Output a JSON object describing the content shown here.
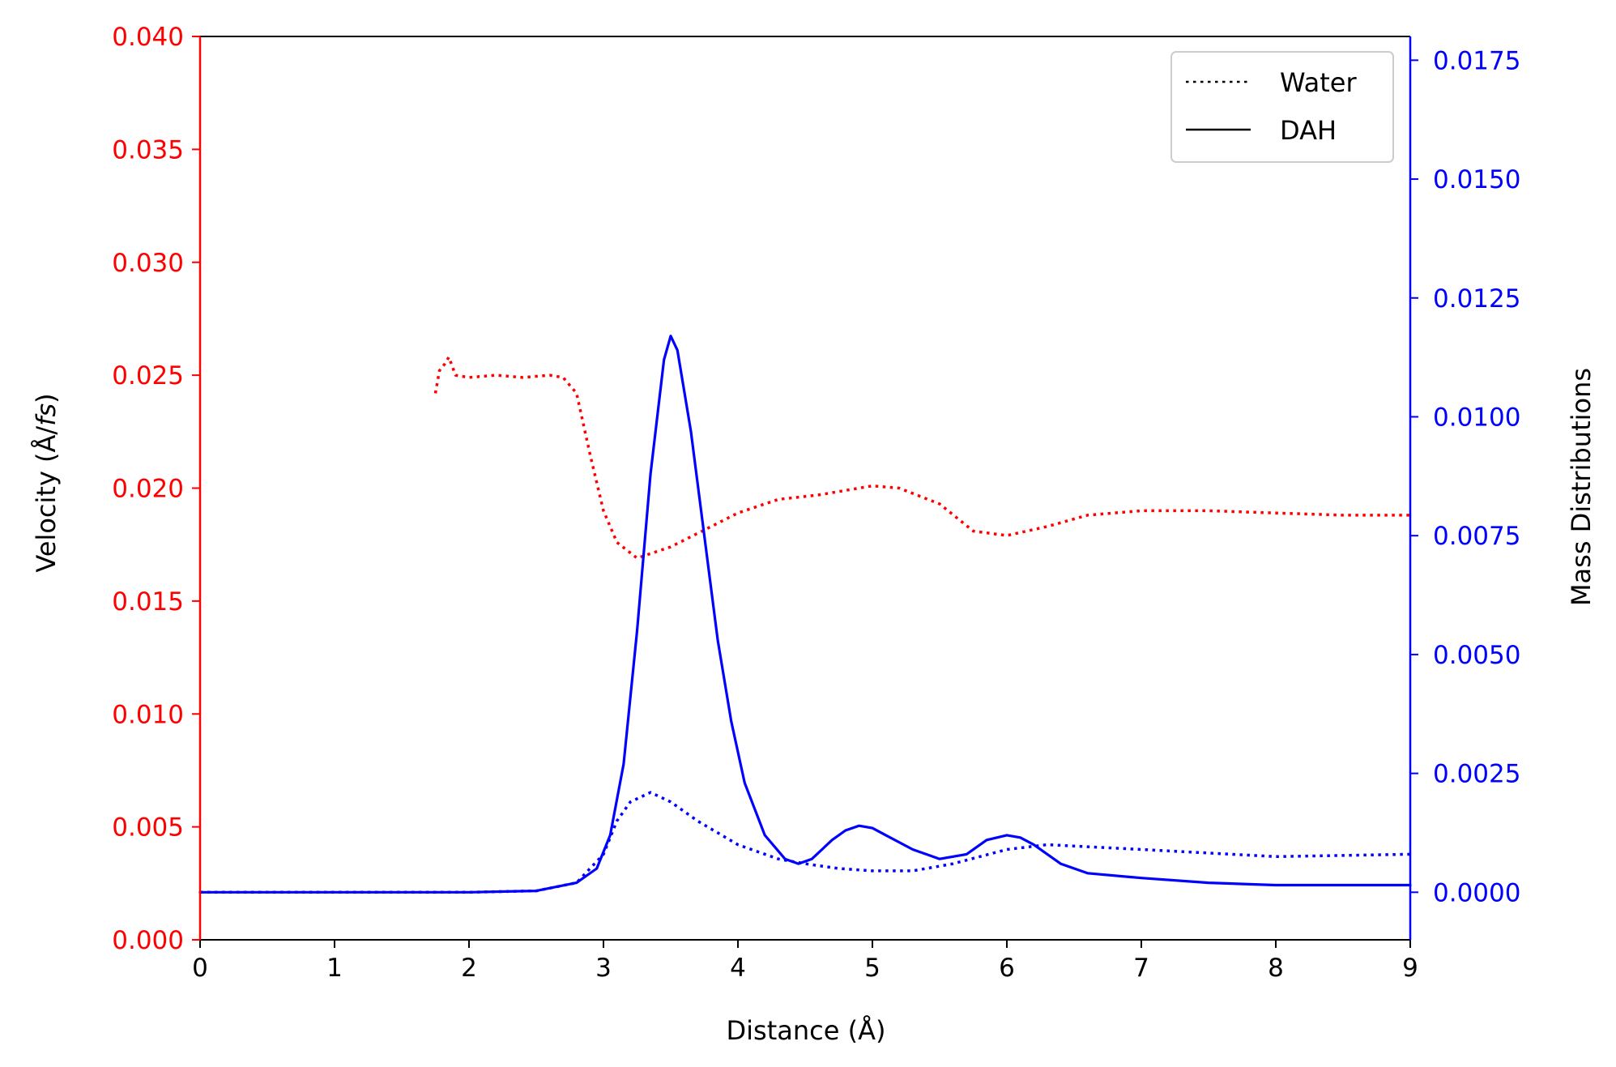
{
  "chart_data": {
    "type": "line",
    "xlabel": "Distance (Å)",
    "ylabel_left": "Velocity (Å/",
    "ylabel_left_italic": "fs",
    "ylabel_left_suffix": ")",
    "ylabel_right": "Mass Distributions",
    "xlim": [
      0,
      9
    ],
    "ylim_left": [
      0,
      0.04
    ],
    "ylim_right": [
      -0.001,
      0.018
    ],
    "xticks": [
      "0",
      "1",
      "2",
      "3",
      "4",
      "5",
      "6",
      "7",
      "8",
      "9"
    ],
    "yticks_left": [
      "0.000",
      "0.005",
      "0.010",
      "0.015",
      "0.020",
      "0.025",
      "0.030",
      "0.035",
      "0.040"
    ],
    "yticks_right": [
      "0.0000",
      "0.0025",
      "0.0050",
      "0.0075",
      "0.0100",
      "0.0125",
      "0.0150",
      "0.0175"
    ],
    "grid": false,
    "legend": {
      "placement": "top-right",
      "entries": [
        {
          "label": "Water",
          "style": "dotted"
        },
        {
          "label": "DAH",
          "style": "solid"
        }
      ]
    },
    "colors": {
      "velocity": "#ff0000",
      "mass": "#0000ff",
      "axes": "#000000"
    },
    "series": [
      {
        "quantity": "velocity",
        "group": "Water",
        "axis": "left",
        "style": "dotted",
        "x": [
          1.75,
          1.78,
          1.82,
          1.85,
          1.9,
          2.0,
          2.2,
          2.4,
          2.6,
          2.7,
          2.8,
          2.9,
          3.0,
          3.1,
          3.25,
          3.5,
          3.7,
          4.0,
          4.3,
          4.6,
          4.8,
          5.0,
          5.2,
          5.5,
          5.75,
          6.0,
          6.3,
          6.6,
          7.0,
          7.5,
          8.0,
          8.5,
          9.0
        ],
        "y": [
          0.0242,
          0.0252,
          0.0255,
          0.0258,
          0.025,
          0.0249,
          0.025,
          0.0249,
          0.025,
          0.0249,
          0.0242,
          0.0215,
          0.019,
          0.0176,
          0.0169,
          0.0174,
          0.018,
          0.0189,
          0.0195,
          0.0197,
          0.0199,
          0.0201,
          0.02,
          0.0193,
          0.0181,
          0.0179,
          0.0183,
          0.0188,
          0.019,
          0.019,
          0.0189,
          0.0188,
          0.0188
        ]
      },
      {
        "quantity": "velocity",
        "group": "DAH",
        "axis": "left",
        "style": "solid",
        "x": [],
        "y": []
      },
      {
        "quantity": "mass",
        "group": "Water",
        "axis": "right",
        "style": "dotted",
        "x": [
          0,
          1,
          2,
          2.5,
          2.8,
          3.0,
          3.1,
          3.2,
          3.35,
          3.5,
          3.7,
          4.0,
          4.3,
          4.5,
          4.75,
          5.0,
          5.3,
          5.6,
          6.0,
          6.3,
          7.0,
          8.0,
          9.0
        ],
        "y": [
          0.0,
          0.0,
          0.0,
          3e-05,
          0.0002,
          0.0008,
          0.0015,
          0.0019,
          0.0021,
          0.0019,
          0.0015,
          0.001,
          0.0007,
          0.0006,
          0.0005,
          0.00045,
          0.00045,
          0.0006,
          0.0009,
          0.001,
          0.0009,
          0.00075,
          0.0008
        ]
      },
      {
        "quantity": "mass",
        "group": "DAH",
        "axis": "right",
        "style": "solid",
        "x": [
          0,
          1,
          2,
          2.5,
          2.8,
          2.95,
          3.05,
          3.15,
          3.25,
          3.35,
          3.45,
          3.5,
          3.55,
          3.65,
          3.75,
          3.85,
          3.95,
          4.05,
          4.2,
          4.35,
          4.45,
          4.55,
          4.7,
          4.8,
          4.9,
          5.0,
          5.1,
          5.3,
          5.5,
          5.7,
          5.85,
          6.0,
          6.1,
          6.2,
          6.4,
          6.6,
          7.0,
          7.5,
          8.0,
          8.5,
          9.0
        ],
        "y": [
          0.0,
          0.0,
          0.0,
          3e-05,
          0.0002,
          0.0005,
          0.0012,
          0.0027,
          0.0055,
          0.0088,
          0.0112,
          0.0117,
          0.0114,
          0.0097,
          0.0075,
          0.0053,
          0.0036,
          0.0023,
          0.0012,
          0.0007,
          0.0006,
          0.0007,
          0.0011,
          0.0013,
          0.0014,
          0.00135,
          0.0012,
          0.0009,
          0.0007,
          0.0008,
          0.0011,
          0.0012,
          0.00115,
          0.001,
          0.0006,
          0.0004,
          0.0003,
          0.0002,
          0.00015,
          0.00015,
          0.00015
        ]
      }
    ]
  }
}
